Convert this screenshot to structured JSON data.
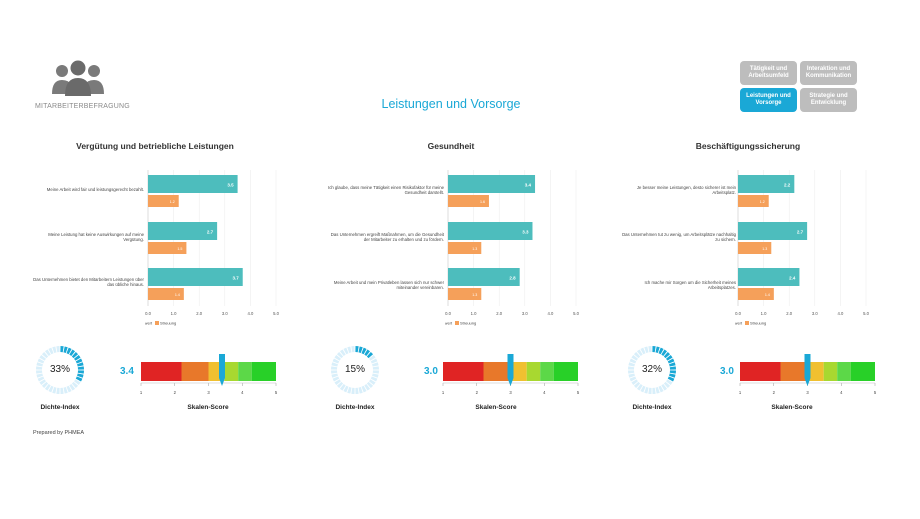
{
  "header": {
    "logo_text": "MITARBEITERBEFRAGUNG",
    "title": "Leistungen und Vorsorge"
  },
  "nav": [
    {
      "label": "Tätigkeit und Arbeitsumfeld",
      "active": false
    },
    {
      "label": "Interaktion und Kommunikation",
      "active": false
    },
    {
      "label": "Leistungen und Vorsorge",
      "active": true
    },
    {
      "label": "Strategie und Entwicklung",
      "active": false
    }
  ],
  "legend": {
    "mean": "Mittelwert",
    "spread": "Streuung"
  },
  "colors": {
    "accent": "#1aa8d6",
    "mean_bar": "#4dbdbd",
    "spread_bar": "#f5a05a",
    "nav_inactive": "#bdbdbd"
  },
  "gauge_colors": [
    "#e02424",
    "#e8782a",
    "#f0c030",
    "#a8d830",
    "#5cd848",
    "#28d028"
  ],
  "axis_ticks": [
    "0.0",
    "1.0",
    "2.0",
    "3.0",
    "4.0",
    "5.0"
  ],
  "scale_ticks": [
    "1",
    "2",
    "3",
    "4",
    "5"
  ],
  "dichte_label": "Dichte-Index",
  "skalen_label": "Skalen-Score",
  "footer": {
    "prepared": "Prepared by PHMEA"
  },
  "sections": [
    {
      "title": "Vergütung und betriebliche Leistungen",
      "questions": [
        {
          "text": "Meine Arbeit wird fair und leistungsgerecht bezahlt.",
          "mean": 3.5,
          "spread": 1.2,
          "mean_label": "3.5",
          "spread_label": "1.2"
        },
        {
          "text": "Meine Leistung hat keine Auswirkungen auf meine Vergütung.",
          "mean": 2.7,
          "spread": 1.5,
          "mean_label": "2.7",
          "spread_label": "1.5"
        },
        {
          "text": "Das Unternehmen bietet den Mitarbeitern Leistungen über das übliche hinaus.",
          "mean": 3.7,
          "spread": 1.4,
          "mean_label": "3.7",
          "spread_label": "1.4"
        }
      ],
      "dichte_pct": "33%",
      "dichte_value": 0.33,
      "score": 3.4,
      "score_label": "3.4"
    },
    {
      "title": "Gesundheit",
      "questions": [
        {
          "text": "Ich glaube, dass meine Tätigkeit einen Risikofaktor für meine Gesundheit darstellt.",
          "mean": 3.4,
          "spread": 1.6,
          "mean_label": "3.4",
          "spread_label": "1.6"
        },
        {
          "text": "Das Unternehmen ergreift Maßnahmen, um die Gesundheit der Mitarbeiter zu erhalten und zu fördern.",
          "mean": 3.3,
          "spread": 1.3,
          "mean_label": "3.3",
          "spread_label": "1.3"
        },
        {
          "text": "Meine Arbeit und mein Privatleben lassen sich nur schwer miteinander vereinbaren.",
          "mean": 2.8,
          "spread": 1.3,
          "mean_label": "2.8",
          "spread_label": "1.3"
        }
      ],
      "dichte_pct": "15%",
      "dichte_value": 0.15,
      "score": 3.0,
      "score_label": "3.0"
    },
    {
      "title": "Beschäftigungssicherung",
      "questions": [
        {
          "text": "Je besser meine Leistungen, desto sicherer ist mein Arbeitsplatz.",
          "mean": 2.2,
          "spread": 1.2,
          "mean_label": "2.2",
          "spread_label": "1.2"
        },
        {
          "text": "Das Unternehmen tut zu wenig, um Arbeitsplätze nachhaltig zu sichern.",
          "mean": 2.7,
          "spread": 1.3,
          "mean_label": "2.7",
          "spread_label": "1.3"
        },
        {
          "text": "Ich mache mir Sorgen um die Sicherheit meines Arbeitsplatzes.",
          "mean": 2.4,
          "spread": 1.4,
          "mean_label": "2.4",
          "spread_label": "1.4"
        }
      ],
      "dichte_pct": "32%",
      "dichte_value": 0.32,
      "score": 3.0,
      "score_label": "3.0"
    }
  ]
}
